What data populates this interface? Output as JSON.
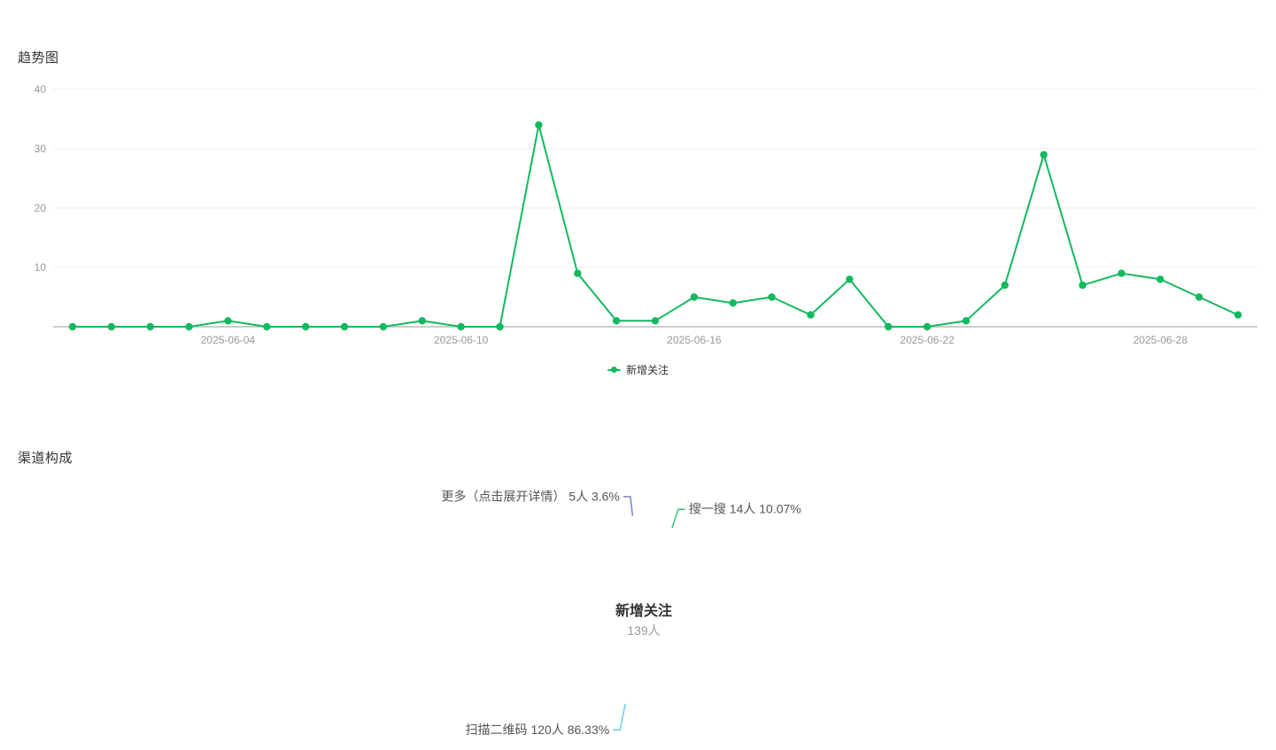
{
  "theme": {
    "background": "#ffffff",
    "grid_line": "#ececec",
    "axis_line": "#cccccc",
    "tick_label": "#999999",
    "pie_label_text": "#555555",
    "center_title_color": "#333333",
    "center_value_color": "#999999",
    "title_color": "#333333"
  },
  "chart_data": [
    {
      "type": "line",
      "title": "趋势图",
      "legend_position": "bottom",
      "grid": true,
      "ylim": [
        0,
        40
      ],
      "y_ticks": [
        10,
        20,
        30,
        40
      ],
      "x": [
        "2025-05-31",
        "2025-06-01",
        "2025-06-02",
        "2025-06-03",
        "2025-06-04",
        "2025-06-05",
        "2025-06-06",
        "2025-06-07",
        "2025-06-08",
        "2025-06-09",
        "2025-06-10",
        "2025-06-11",
        "2025-06-12",
        "2025-06-13",
        "2025-06-14",
        "2025-06-15",
        "2025-06-16",
        "2025-06-17",
        "2025-06-18",
        "2025-06-19",
        "2025-06-20",
        "2025-06-21",
        "2025-06-22",
        "2025-06-23",
        "2025-06-24",
        "2025-06-25",
        "2025-06-26",
        "2025-06-27",
        "2025-06-28",
        "2025-06-29",
        "2025-06-30"
      ],
      "x_ticks": [
        {
          "index": 4,
          "label": "2025-06-04"
        },
        {
          "index": 10,
          "label": "2025-06-10"
        },
        {
          "index": 16,
          "label": "2025-06-16"
        },
        {
          "index": 22,
          "label": "2025-06-22"
        },
        {
          "index": 28,
          "label": "2025-06-28"
        }
      ],
      "series": [
        {
          "name": "新增关注",
          "color": "#12b95f",
          "values": [
            0,
            0,
            0,
            0,
            1,
            0,
            0,
            0,
            0,
            1,
            0,
            0,
            34,
            9,
            1,
            1,
            5,
            4,
            5,
            2,
            8,
            0,
            0,
            1,
            7,
            29,
            7,
            9,
            8,
            5,
            2
          ]
        }
      ]
    },
    {
      "type": "pie",
      "title": "渠道构成",
      "donut": true,
      "center_label": {
        "title": "新增关注",
        "value": "139人"
      },
      "slices": [
        {
          "key": "search",
          "name": "搜一搜",
          "value": 14,
          "unit": "人",
          "pct": 10.07,
          "label": "搜一搜 14人 10.07%",
          "color": "#12b95f",
          "selected": false
        },
        {
          "key": "qr-scan",
          "name": "扫描二维码",
          "value": 120,
          "unit": "人",
          "pct": 86.33,
          "label": "扫描二维码 120人 86.33%",
          "color": "#4dc8de",
          "selected": false
        },
        {
          "key": "more",
          "name": "更多（点击展开详情）",
          "value": 5,
          "unit": "人",
          "pct": 3.6,
          "label": "更多（点击展开详情） 5人 3.6%",
          "color": "#5f6ec6",
          "selected": true
        }
      ]
    }
  ]
}
